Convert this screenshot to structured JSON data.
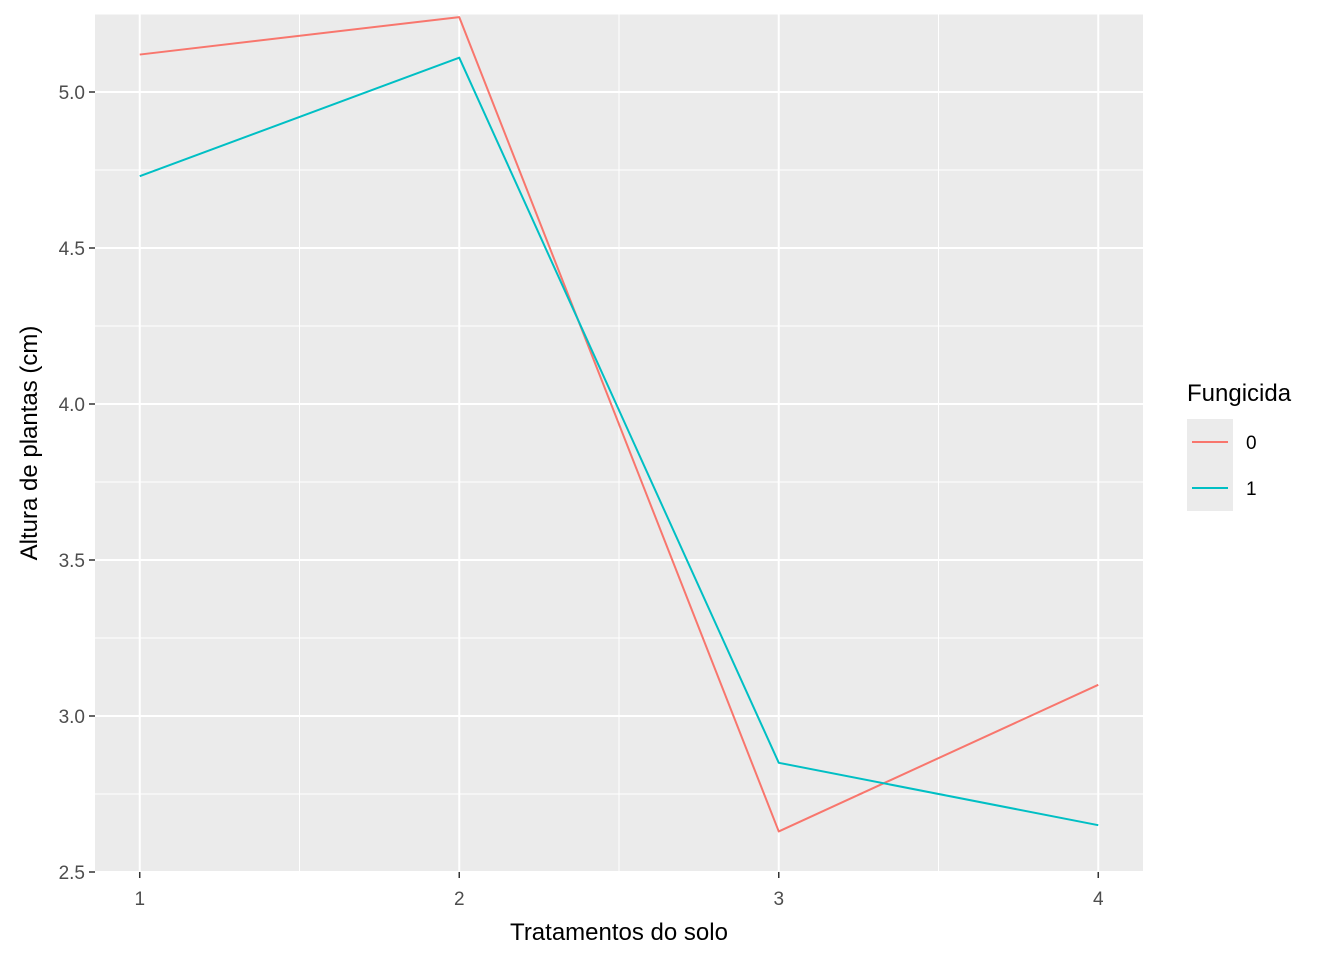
{
  "chart_data": {
    "type": "line",
    "xlabel": "Tratamentos do solo",
    "ylabel": "Altura de plantas (cm)",
    "x": [
      1,
      2,
      3,
      4
    ],
    "x_tick_labels": [
      "1",
      "2",
      "3",
      "4"
    ],
    "xlim": [
      0.86,
      4.14
    ],
    "ylim": [
      2.5,
      5.25
    ],
    "y_ticks": [
      2.5,
      3.0,
      3.5,
      4.0,
      4.5,
      5.0
    ],
    "y_tick_labels": [
      "2.5",
      "3.0",
      "3.5",
      "4.0",
      "4.5",
      "5.0"
    ],
    "grid": true,
    "legend": {
      "title": "Fungicida",
      "position": "right"
    },
    "series": [
      {
        "name": "0",
        "color": "#F8766D",
        "values": [
          5.12,
          5.24,
          2.63,
          3.1
        ]
      },
      {
        "name": "1",
        "color": "#00BFC4",
        "values": [
          4.73,
          5.11,
          2.85,
          2.65
        ]
      }
    ]
  }
}
